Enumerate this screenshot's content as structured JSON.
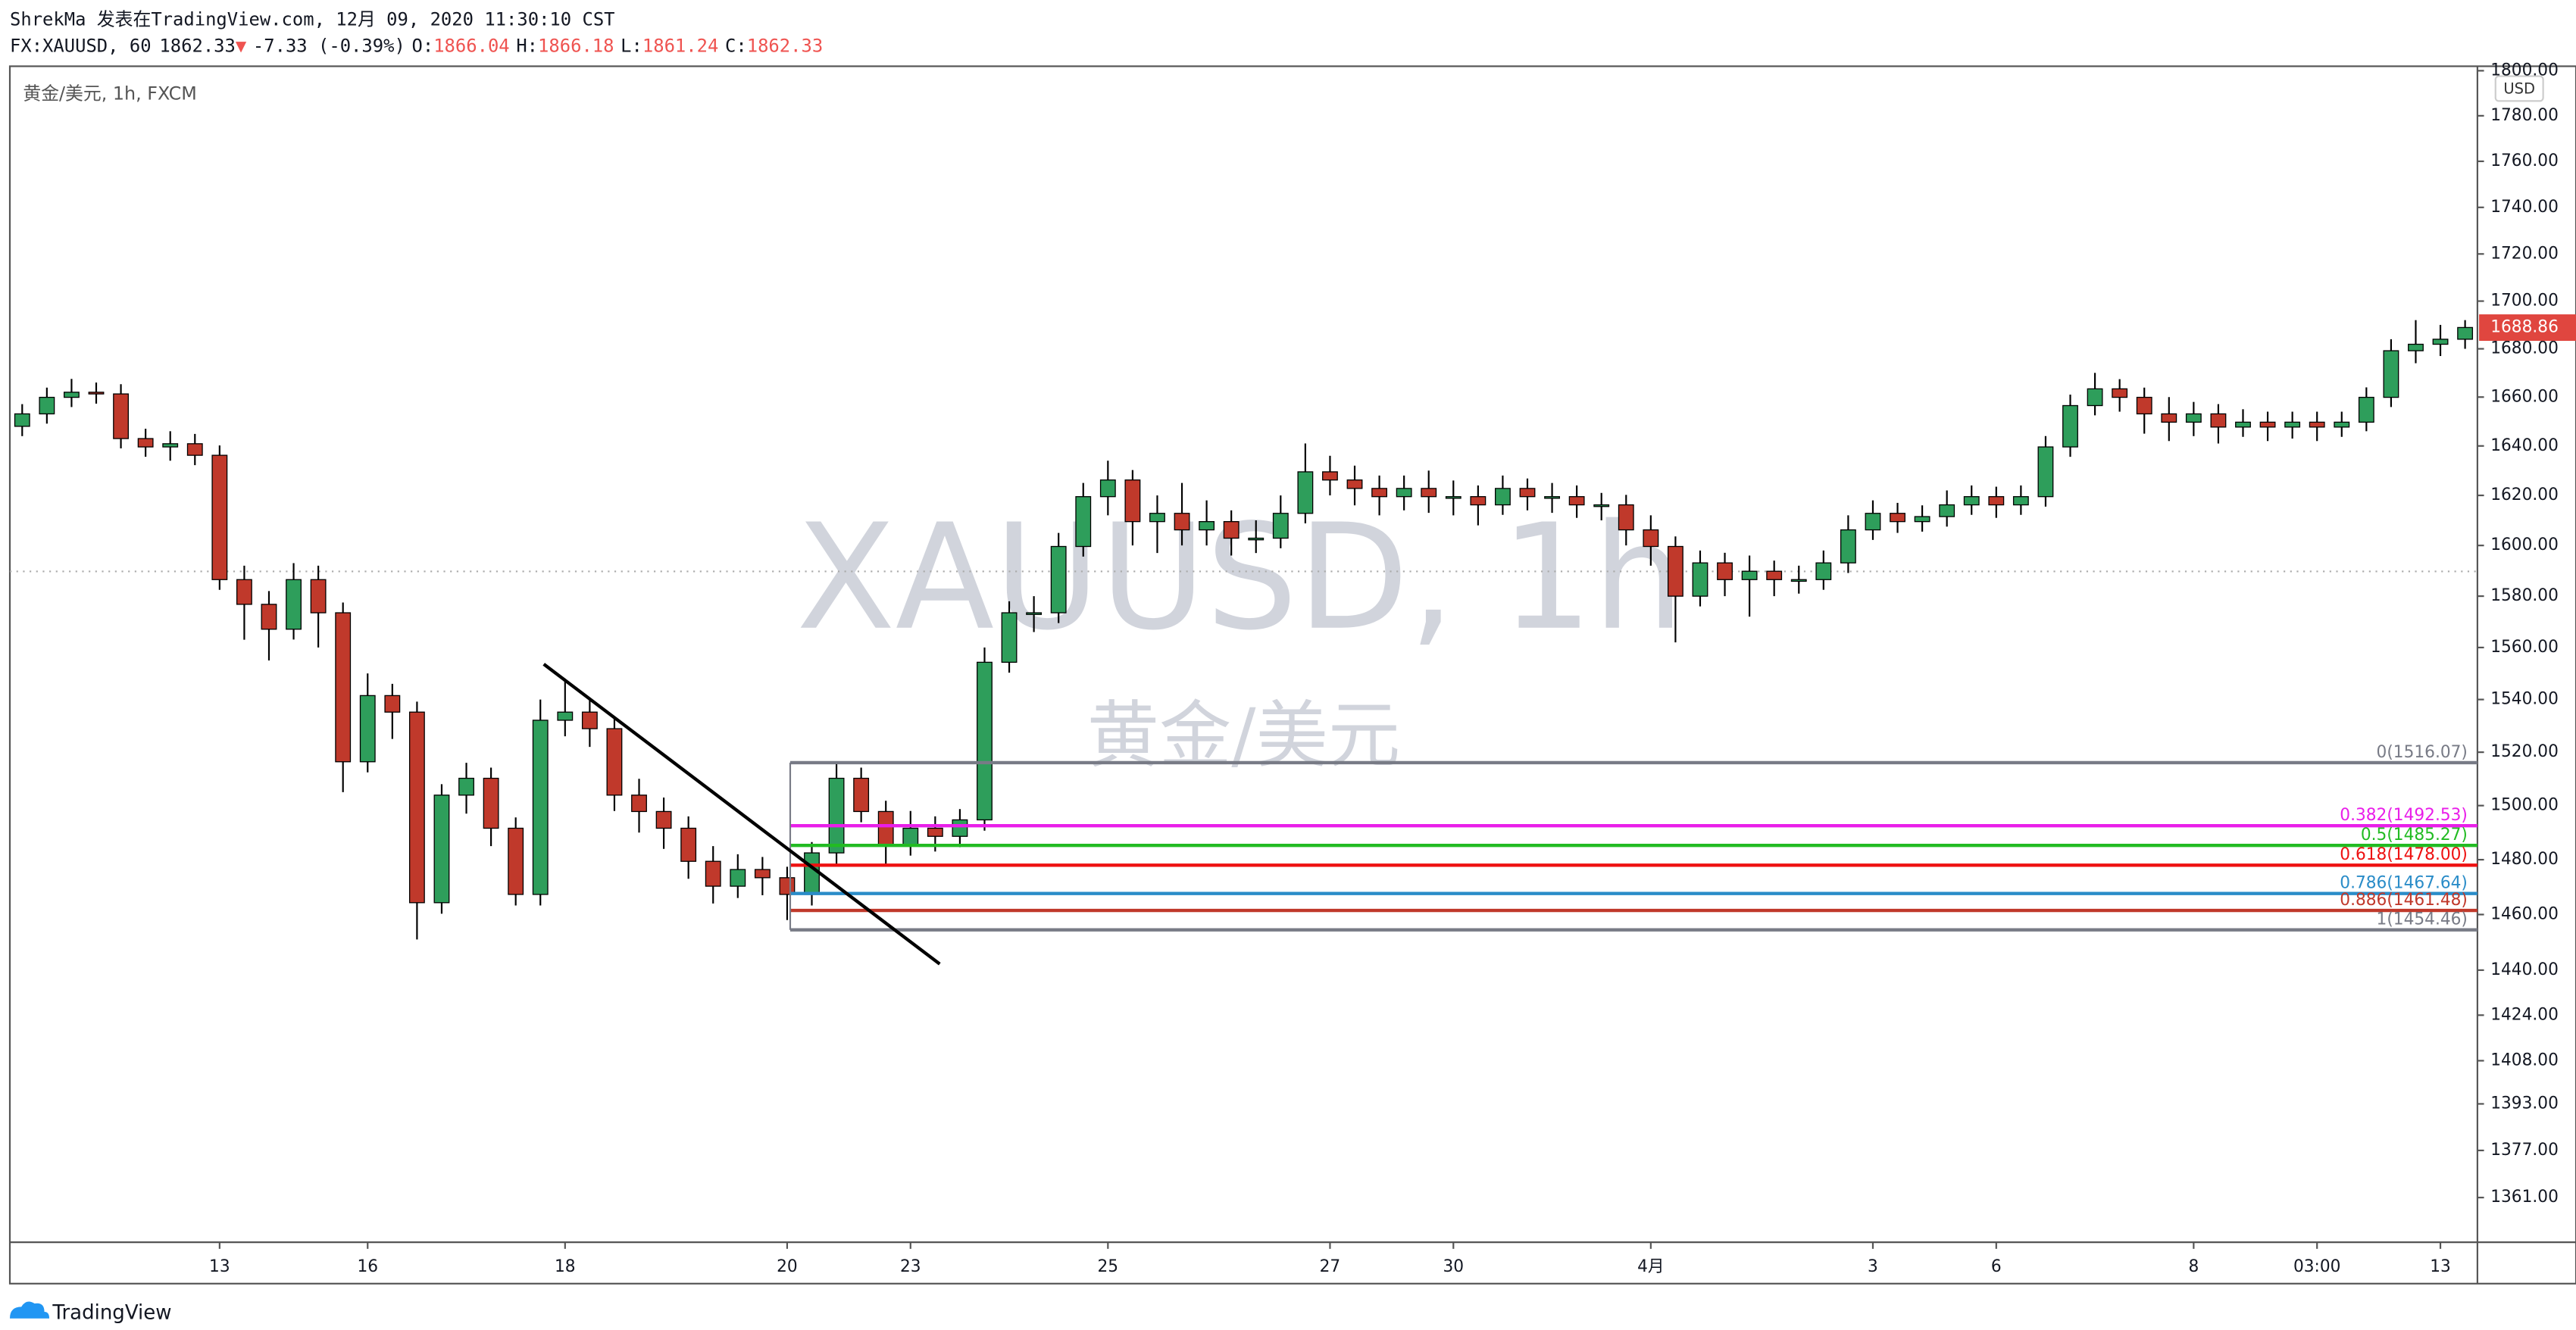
{
  "header": {
    "line1": "ShrekMa 发表在TradingView.com, 12月 09, 2020 11:30:10 CST",
    "symbol": "FX:XAUUSD, 60",
    "price": "1862.33",
    "arrow": "▼",
    "change": "-7.33 (-0.39%)",
    "o_label": "O:",
    "o": "1866.04",
    "h_label": "H:",
    "h": "1866.18",
    "l_label": "L:",
    "l": "1861.24",
    "c_label": "C:",
    "c": "1862.33"
  },
  "brand": "TradingView",
  "chart_data": {
    "type": "candlestick",
    "symbol_label": "黄金/美元, 1h, FXCM",
    "watermark": "XAUUSD, 1h",
    "watermark_sub": "黄金/美元",
    "currency": "USD",
    "last_price": 1688.86,
    "up_color": "#2e9e5b",
    "down_color": "#c0392b",
    "log_scale": true,
    "ylim": [
      1346,
      1802
    ],
    "yticks": [
      {
        "value": 1361,
        "label": "1361.00"
      },
      {
        "value": 1377,
        "label": "1377.00"
      },
      {
        "value": 1393,
        "label": "1393.00"
      },
      {
        "value": 1408,
        "label": "1408.00"
      },
      {
        "value": 1424,
        "label": "1424.00"
      },
      {
        "value": 1440,
        "label": "1440.00"
      },
      {
        "value": 1460,
        "label": "1460.00"
      },
      {
        "value": 1480,
        "label": "1480.00"
      },
      {
        "value": 1500,
        "label": "1500.00"
      },
      {
        "value": 1520,
        "label": "1520.00"
      },
      {
        "value": 1540,
        "label": "1540.00"
      },
      {
        "value": 1560,
        "label": "1560.00"
      },
      {
        "value": 1580,
        "label": "1580.00"
      },
      {
        "value": 1600,
        "label": "1600.00"
      },
      {
        "value": 1620,
        "label": "1620.00"
      },
      {
        "value": 1640,
        "label": "1640.00"
      },
      {
        "value": 1660,
        "label": "1660.00"
      },
      {
        "value": 1680,
        "label": "1680.00"
      },
      {
        "value": 1700,
        "label": "1700.00"
      },
      {
        "value": 1720,
        "label": "1720.00"
      },
      {
        "value": 1740,
        "label": "1740.00"
      },
      {
        "value": 1760,
        "label": "1760.00"
      },
      {
        "value": 1780,
        "label": "1780.00"
      },
      {
        "value": 1800,
        "label": "1800.00"
      }
    ],
    "categories": [
      null,
      null,
      null,
      null,
      null,
      null,
      null,
      null,
      "13",
      null,
      null,
      null,
      null,
      null,
      "16",
      null,
      null,
      null,
      null,
      null,
      null,
      null,
      "18",
      null,
      null,
      null,
      null,
      null,
      null,
      null,
      null,
      "20",
      null,
      null,
      null,
      null,
      "23",
      null,
      null,
      null,
      null,
      null,
      null,
      null,
      "25",
      null,
      null,
      null,
      null,
      null,
      null,
      null,
      null,
      "27",
      null,
      null,
      null,
      null,
      "30",
      null,
      null,
      null,
      null,
      null,
      null,
      null,
      "4月",
      null,
      null,
      null,
      null,
      null,
      null,
      null,
      null,
      "3",
      null,
      null,
      null,
      null,
      "6",
      null,
      null,
      null,
      null,
      null,
      null,
      null,
      "8",
      null,
      null,
      null,
      null,
      "03:00",
      null,
      null,
      null,
      null,
      "13",
      null
    ],
    "open": [
      1648.0,
      1653.1,
      1659.9,
      1662.0,
      1661.3,
      1643.0,
      1639.6,
      1640.9,
      1636.2,
      1586.5,
      1576.8,
      1567.1,
      1586.5,
      1573.5,
      1516.4,
      1541.5,
      1535.2,
      1464.3,
      1503.9,
      1510.2,
      1491.6,
      1467.3,
      1532.1,
      1535.2,
      1528.9,
      1503.9,
      1497.8,
      1491.6,
      1479.4,
      1470.3,
      1476.4,
      1473.4,
      1467.3,
      1482.5,
      1510.2,
      1497.8,
      1485.5,
      1491.6,
      1488.6,
      1494.7,
      1554.3,
      1573.5,
      1573.5,
      1599.6,
      1619.5,
      1626.2,
      1609.5,
      1612.8,
      1606.2,
      1609.5,
      1602.9,
      1602.9,
      1612.8,
      1629.5,
      1626.2,
      1622.8,
      1619.5,
      1622.8,
      1619.5,
      1619.5,
      1616.2,
      1622.8,
      1619.5,
      1619.5,
      1616.2,
      1616.2,
      1606.2,
      1599.6,
      1580.0,
      1593.1,
      1586.5,
      1589.8,
      1586.5,
      1586.5,
      1593.1,
      1606.2,
      1612.8,
      1609.5,
      1611.5,
      1616.2,
      1619.5,
      1616.2,
      1619.5,
      1639.6,
      1656.5,
      1663.4,
      1659.9,
      1653.1,
      1649.7,
      1653.1,
      1647.7,
      1649.7,
      1647.7,
      1649.7,
      1647.7,
      1649.7,
      1659.9,
      1679.2,
      1681.9,
      1684.0
    ],
    "high": [
      1657.1,
      1663.9,
      1667.5,
      1666.0,
      1665.3,
      1647.0,
      1646.0,
      1644.9,
      1640.2,
      1592.0,
      1582.0,
      1593.0,
      1592.0,
      1577.5,
      1550.0,
      1546.0,
      1539.2,
      1508.0,
      1516.0,
      1514.2,
      1495.6,
      1540.0,
      1548.0,
      1540.0,
      1532.9,
      1510.0,
      1503.0,
      1496.0,
      1485.0,
      1482.0,
      1481.0,
      1477.4,
      1486.5,
      1516.1,
      1514.2,
      1501.8,
      1498.0,
      1496.0,
      1498.7,
      1560.0,
      1578.0,
      1580.0,
      1605.0,
      1625.0,
      1634.0,
      1630.2,
      1620.0,
      1625.0,
      1618.0,
      1614.0,
      1610.0,
      1620.0,
      1641.0,
      1636.0,
      1632.0,
      1628.0,
      1628.0,
      1630.0,
      1626.0,
      1624.0,
      1628.0,
      1626.8,
      1625.0,
      1624.0,
      1621.0,
      1620.2,
      1612.0,
      1603.6,
      1598.0,
      1597.1,
      1596.0,
      1594.0,
      1592.0,
      1598.0,
      1612.0,
      1618.0,
      1617.0,
      1616.0,
      1622.0,
      1624.0,
      1623.5,
      1624.0,
      1644.0,
      1661.0,
      1670.0,
      1667.4,
      1663.9,
      1660.0,
      1658.0,
      1657.1,
      1655.0,
      1654.0,
      1654.0,
      1654.0,
      1654.0,
      1664.0,
      1684.0,
      1692.0,
      1690.0,
      1692.0
    ],
    "low": [
      1644.0,
      1649.1,
      1655.9,
      1657.3,
      1639.0,
      1635.6,
      1634.0,
      1632.2,
      1582.5,
      1563.0,
      1555.0,
      1563.1,
      1560.0,
      1505.0,
      1512.4,
      1525.0,
      1451.0,
      1460.3,
      1497.0,
      1485.0,
      1463.3,
      1463.3,
      1526.0,
      1522.0,
      1498.0,
      1490.0,
      1484.0,
      1473.0,
      1464.0,
      1466.0,
      1467.0,
      1458.0,
      1463.3,
      1478.5,
      1493.8,
      1478.0,
      1481.5,
      1483.0,
      1484.6,
      1490.7,
      1550.3,
      1566.0,
      1569.5,
      1595.6,
      1612.0,
      1600.0,
      1597.0,
      1600.0,
      1600.0,
      1596.0,
      1597.0,
      1598.9,
      1608.8,
      1620.0,
      1616.0,
      1612.0,
      1614.0,
      1613.0,
      1612.0,
      1608.0,
      1612.2,
      1614.0,
      1613.0,
      1611.0,
      1610.0,
      1600.0,
      1592.0,
      1562.0,
      1576.0,
      1580.0,
      1572.0,
      1580.0,
      1581.0,
      1582.5,
      1589.1,
      1602.2,
      1605.0,
      1605.5,
      1607.5,
      1612.2,
      1611.0,
      1612.2,
      1615.5,
      1635.6,
      1652.5,
      1654.0,
      1645.0,
      1642.0,
      1644.0,
      1641.0,
      1643.7,
      1642.0,
      1643.0,
      1642.0,
      1643.7,
      1646.0,
      1655.9,
      1674.0,
      1677.0,
      1680.0
    ],
    "close": [
      1653.1,
      1659.9,
      1662.0,
      1661.3,
      1643.0,
      1639.6,
      1640.9,
      1636.2,
      1586.5,
      1576.8,
      1567.1,
      1586.5,
      1573.5,
      1516.4,
      1541.5,
      1535.2,
      1464.3,
      1503.9,
      1510.2,
      1491.6,
      1467.3,
      1532.1,
      1535.2,
      1528.9,
      1503.9,
      1497.8,
      1491.6,
      1479.4,
      1470.3,
      1476.4,
      1473.4,
      1467.3,
      1482.5,
      1510.2,
      1497.8,
      1485.5,
      1491.6,
      1488.6,
      1494.7,
      1554.3,
      1573.5,
      1573.5,
      1599.6,
      1619.5,
      1626.2,
      1609.5,
      1612.8,
      1606.2,
      1609.5,
      1602.9,
      1602.9,
      1612.8,
      1629.5,
      1626.2,
      1622.8,
      1619.5,
      1622.8,
      1619.5,
      1619.5,
      1616.2,
      1622.8,
      1619.5,
      1619.5,
      1616.2,
      1616.2,
      1606.2,
      1599.6,
      1580.0,
      1593.1,
      1586.5,
      1589.8,
      1586.5,
      1586.5,
      1593.1,
      1606.2,
      1612.8,
      1609.5,
      1611.5,
      1616.2,
      1619.5,
      1616.2,
      1619.5,
      1639.6,
      1656.5,
      1663.4,
      1659.9,
      1653.1,
      1649.7,
      1653.1,
      1647.7,
      1649.7,
      1647.7,
      1649.7,
      1647.7,
      1649.7,
      1659.9,
      1679.2,
      1681.9,
      1684.0,
      1688.9
    ],
    "fib_levels": [
      {
        "label": "0(1516.07)",
        "value": 1516.07,
        "color": "#787b86"
      },
      {
        "label": "0.382(1492.53)",
        "value": 1492.53,
        "color": "#e91ee9"
      },
      {
        "label": "0.5(1485.27)",
        "value": 1485.27,
        "color": "#22bb22"
      },
      {
        "label": "0.618(1478.00)",
        "value": 1478.0,
        "color": "#ee1111"
      },
      {
        "label": "0.786(1467.64)",
        "value": 1467.64,
        "color": "#2a8cc8"
      },
      {
        "label": "0.886(1461.48)",
        "value": 1461.48,
        "color": "#c0392b"
      },
      {
        "label": "1(1454.46)",
        "value": 1454.46,
        "color": "#787b86"
      }
    ]
  }
}
